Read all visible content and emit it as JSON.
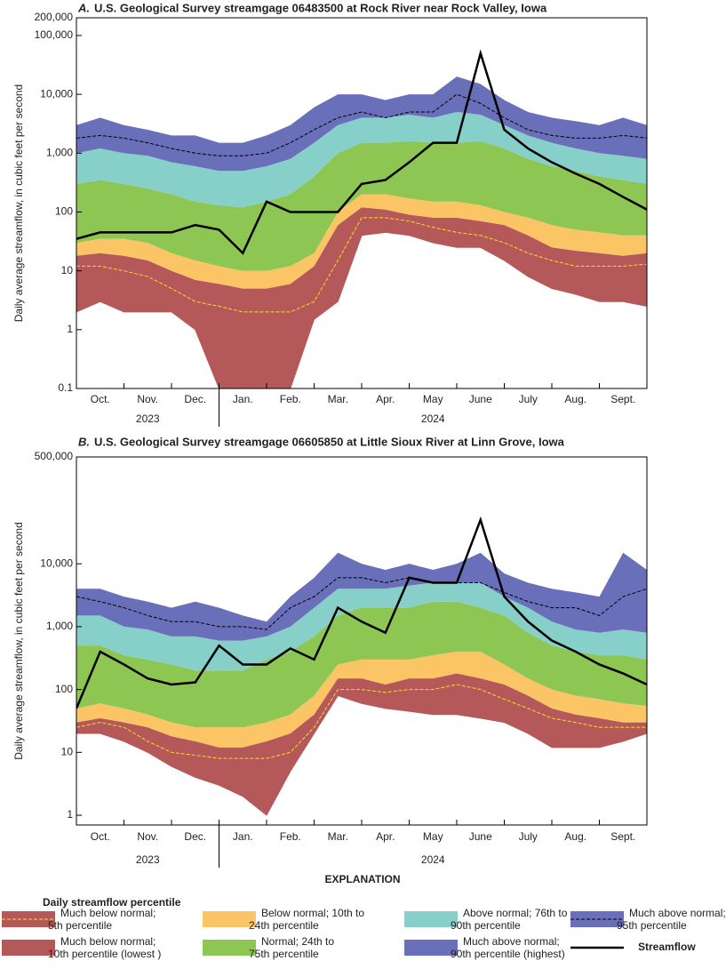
{
  "chart_data": [
    {
      "type": "area",
      "panel": "A.",
      "title": "U.S. Geological Survey streamgage 06483500 at Rock River near Rock Valley, Iowa",
      "y_label": "Daily average streamflow, in cubic feet per second",
      "log": true,
      "ylim": [
        0.1,
        200000
      ],
      "yticks": [
        0.1,
        1,
        10,
        100,
        {
          "value": 1000,
          "label": "1,000"
        },
        {
          "value": 10000,
          "label": "10,000"
        },
        {
          "value": 100000,
          "label": "100,000"
        },
        {
          "value": 200000,
          "label": "200,000"
        }
      ],
      "categories": [
        null,
        "Oct.",
        null,
        "Nov.",
        null,
        "Dec.",
        null,
        "Jan.",
        null,
        "Feb.",
        null,
        "Mar.",
        null,
        "Apr.",
        null,
        "May",
        null,
        "June",
        null,
        "July",
        null,
        "Aug.",
        null,
        "Sept.",
        null
      ],
      "years": [
        "2023",
        "2024"
      ],
      "series": [
        {
          "style": "base",
          "color": "#b5585a",
          "values": [
            2,
            3,
            2,
            2,
            2,
            1,
            0.1,
            0.1,
            0.1,
            0.1,
            1.5,
            3,
            40,
            45,
            40,
            30,
            25,
            25,
            15,
            8,
            5,
            4,
            3,
            3,
            2.5
          ]
        },
        {
          "style": "area",
          "color": "#b5585a",
          "values": [
            18,
            20,
            18,
            15,
            10,
            7,
            6,
            5,
            5,
            6,
            12,
            60,
            120,
            110,
            90,
            80,
            80,
            70,
            60,
            40,
            25,
            22,
            20,
            18,
            20
          ]
        },
        {
          "style": "area",
          "color": "#fbc465",
          "values": [
            30,
            35,
            35,
            30,
            20,
            15,
            12,
            10,
            10,
            12,
            20,
            100,
            200,
            200,
            170,
            150,
            150,
            130,
            100,
            80,
            60,
            50,
            45,
            40,
            40
          ]
        },
        {
          "style": "area",
          "color": "#8dc653",
          "values": [
            300,
            350,
            300,
            250,
            200,
            150,
            130,
            120,
            150,
            200,
            400,
            1000,
            1500,
            1500,
            1600,
            1500,
            1500,
            1600,
            1200,
            800,
            600,
            500,
            400,
            350,
            300
          ]
        },
        {
          "style": "area",
          "color": "#86d0c9",
          "values": [
            1000,
            1200,
            1000,
            900,
            700,
            600,
            500,
            500,
            600,
            800,
            1500,
            3000,
            4000,
            4000,
            4500,
            4000,
            5000,
            4500,
            3000,
            2000,
            1500,
            1200,
            1000,
            900,
            800
          ]
        },
        {
          "style": "area",
          "color": "#6a6fb9",
          "values": [
            3000,
            4000,
            3000,
            2500,
            2000,
            2000,
            1500,
            1500,
            2000,
            3000,
            6000,
            10000,
            10000,
            8000,
            10000,
            10000,
            20000,
            15000,
            8000,
            5000,
            4000,
            3500,
            3000,
            4000,
            3000
          ]
        },
        {
          "style": "dashed",
          "color": "#f6e020",
          "values": [
            12,
            12,
            10,
            8,
            5,
            3,
            2.5,
            2,
            2,
            2,
            3,
            15,
            80,
            80,
            70,
            55,
            45,
            40,
            30,
            20,
            15,
            12,
            12,
            12,
            13
          ]
        },
        {
          "style": "dashed",
          "color": "#000000",
          "values": [
            1800,
            2000,
            1800,
            1500,
            1200,
            1000,
            900,
            900,
            1000,
            1500,
            2500,
            4000,
            5000,
            4000,
            5000,
            5000,
            10000,
            7000,
            4000,
            2500,
            2000,
            1800,
            1800,
            2000,
            1800
          ]
        },
        {
          "style": "line",
          "color": "#000000",
          "values": [
            35,
            45,
            45,
            45,
            45,
            60,
            50,
            20,
            150,
            100,
            100,
            100,
            300,
            350,
            700,
            1500,
            1500,
            50000,
            2500,
            1200,
            700,
            450,
            300,
            180,
            110
          ]
        }
      ]
    },
    {
      "type": "area",
      "panel": "B.",
      "title": "U.S. Geological Survey streamgage 06605850 at Little Sioux River at Linn Grove, Iowa",
      "y_label": "Daily average streamflow, in cubic feet per second",
      "log": true,
      "ylim": [
        0.7,
        500000
      ],
      "yticks": [
        1,
        10,
        100,
        {
          "value": 1000,
          "label": "1,000"
        },
        {
          "value": 10000,
          "label": "10,000"
        },
        {
          "value": 500000,
          "label": "500,000"
        }
      ],
      "categories": [
        null,
        "Oct.",
        null,
        "Nov.",
        null,
        "Dec.",
        null,
        "Jan.",
        null,
        "Feb.",
        null,
        "Mar.",
        null,
        "Apr.",
        null,
        "May",
        null,
        "June",
        null,
        "July",
        null,
        "Aug.",
        null,
        "Sept.",
        null
      ],
      "years": [
        "2023",
        "2024"
      ],
      "series": [
        {
          "style": "base",
          "color": "#b5585a",
          "values": [
            20,
            20,
            15,
            10,
            6,
            4,
            3,
            2,
            1,
            5,
            20,
            80,
            60,
            50,
            45,
            40,
            40,
            35,
            30,
            20,
            12,
            12,
            12,
            15,
            20
          ]
        },
        {
          "style": "area",
          "color": "#b5585a",
          "values": [
            30,
            35,
            30,
            25,
            18,
            15,
            12,
            12,
            15,
            20,
            40,
            150,
            150,
            120,
            150,
            150,
            180,
            150,
            120,
            80,
            50,
            40,
            35,
            30,
            30
          ]
        },
        {
          "style": "area",
          "color": "#fbc465",
          "values": [
            50,
            60,
            50,
            40,
            30,
            25,
            25,
            25,
            30,
            40,
            80,
            250,
            300,
            300,
            300,
            350,
            400,
            400,
            250,
            150,
            100,
            80,
            70,
            60,
            55
          ]
        },
        {
          "style": "area",
          "color": "#8dc653",
          "values": [
            500,
            500,
            350,
            300,
            250,
            200,
            200,
            200,
            300,
            400,
            700,
            1500,
            2000,
            2000,
            2000,
            2500,
            2500,
            2000,
            1500,
            800,
            500,
            400,
            350,
            350,
            300
          ]
        },
        {
          "style": "area",
          "color": "#86d0c9",
          "values": [
            1500,
            1500,
            1000,
            900,
            700,
            700,
            600,
            600,
            700,
            1000,
            2000,
            4000,
            4000,
            4000,
            4500,
            5000,
            5000,
            5000,
            3000,
            2000,
            1200,
            900,
            800,
            900,
            800
          ]
        },
        {
          "style": "area",
          "color": "#6a6fb9",
          "values": [
            4000,
            4000,
            3000,
            2500,
            2000,
            2500,
            2000,
            1500,
            1200,
            3000,
            6000,
            15000,
            10000,
            8000,
            10000,
            8000,
            10000,
            15000,
            7000,
            5000,
            4000,
            3500,
            3000,
            15000,
            8000
          ]
        },
        {
          "style": "dashed",
          "color": "#f6e020",
          "values": [
            25,
            30,
            25,
            15,
            10,
            9,
            8,
            8,
            8,
            10,
            25,
            100,
            100,
            90,
            100,
            100,
            120,
            100,
            70,
            50,
            35,
            30,
            25,
            25,
            25
          ]
        },
        {
          "style": "dashed",
          "color": "#000000",
          "values": [
            3000,
            2500,
            2000,
            1500,
            1200,
            1200,
            1000,
            1000,
            900,
            2000,
            3000,
            6000,
            6000,
            5000,
            6000,
            5000,
            5000,
            5000,
            3500,
            2500,
            2000,
            2000,
            1500,
            3000,
            4000
          ]
        },
        {
          "style": "line",
          "color": "#000000",
          "values": [
            50,
            400,
            250,
            150,
            120,
            130,
            500,
            250,
            250,
            450,
            300,
            2000,
            1200,
            800,
            6000,
            5000,
            5000,
            50000,
            3000,
            1200,
            600,
            400,
            250,
            180,
            120
          ]
        }
      ]
    }
  ],
  "legend": {
    "heading": "EXPLANATION",
    "title": "Daily streamflow percentile",
    "items": [
      {
        "lines": [
          "Much below normal;",
          "5th percentile"
        ],
        "style": "area-line",
        "color": "#b5585a",
        "line_color": "#f6e020"
      },
      {
        "lines": [
          "Much below normal;",
          "10th percentile (lowest )"
        ],
        "style": "area",
        "color": "#b5585a"
      },
      {
        "lines": [
          "Below normal; 10th to",
          "24th percentile"
        ],
        "style": "area",
        "color": "#fbc465"
      },
      {
        "lines": [
          "Normal; 24th to",
          "75th percentile"
        ],
        "style": "area",
        "color": "#8dc653"
      },
      {
        "lines": [
          "Above normal; 76th to",
          "90th percentile"
        ],
        "style": "area",
        "color": "#86d0c9"
      },
      {
        "lines": [
          "Much above normal;",
          "90th percentile (highest)"
        ],
        "style": "area",
        "color": "#6a6fb9"
      },
      {
        "lines": [
          "Much above normal;",
          "95th percentile"
        ],
        "style": "area-line",
        "color": "#6a6fb9",
        "line_color": "#000000"
      },
      {
        "lines": [
          "Streamflow"
        ],
        "style": "line",
        "color": "#000000"
      }
    ]
  }
}
